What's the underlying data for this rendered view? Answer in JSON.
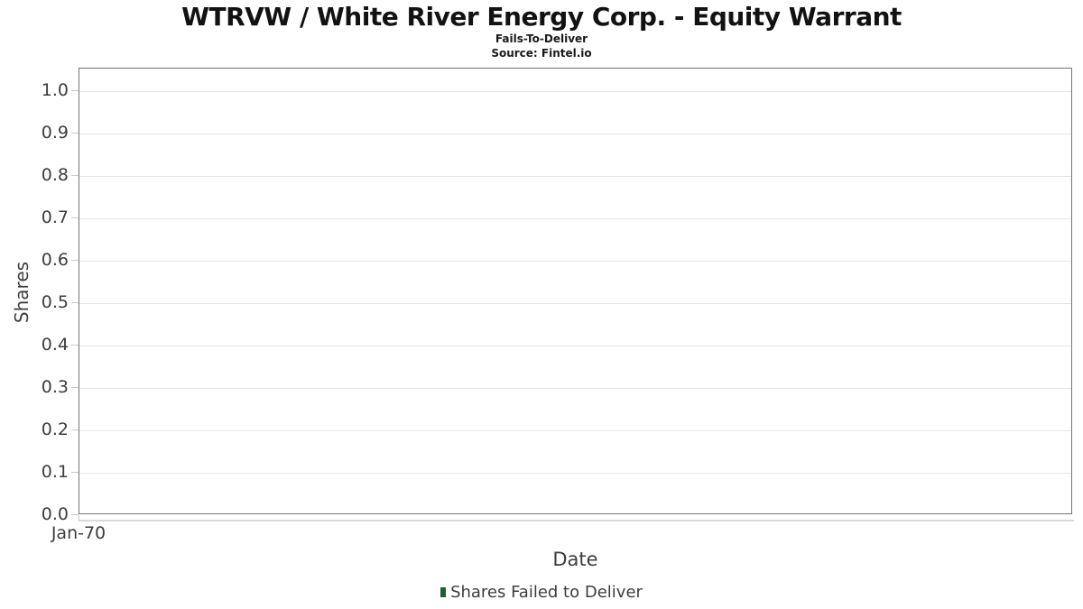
{
  "header": {
    "title": "WTRVW / White River Energy Corp. - Equity Warrant",
    "subtitle": "Fails-To-Deliver",
    "source": "Source: Fintel.io"
  },
  "chart_data": {
    "type": "bar",
    "title": "WTRVW / White River Energy Corp. - Equity Warrant",
    "subtitle": "Fails-To-Deliver",
    "source": "Source: Fintel.io",
    "xlabel": "Date",
    "ylabel": "Shares",
    "x_tick_labels": [
      "Jan-70"
    ],
    "y_tick_values": [
      0.0,
      0.1,
      0.2,
      0.3,
      0.4,
      0.5,
      0.6,
      0.7,
      0.8,
      0.9,
      1.0
    ],
    "y_tick_labels": [
      "0.0",
      "0.1",
      "0.2",
      "0.3",
      "0.4",
      "0.5",
      "0.6",
      "0.7",
      "0.8",
      "0.9",
      "1.0"
    ],
    "ylim": [
      0,
      1.05
    ],
    "grid": true,
    "legend": {
      "position": "bottom",
      "entries": [
        {
          "label": "Shares Failed to Deliver",
          "color": "#235c33"
        }
      ]
    },
    "series": [
      {
        "name": "Shares Failed to Deliver",
        "x": [],
        "values": []
      }
    ]
  },
  "colors": {
    "plot_border": "#757575",
    "gridline": "#e4e4e4",
    "tick_mark": "#c9c9c9",
    "axis_text": "#3d3d3d",
    "title_text": "#121212",
    "legend_marker": "#235c33"
  }
}
